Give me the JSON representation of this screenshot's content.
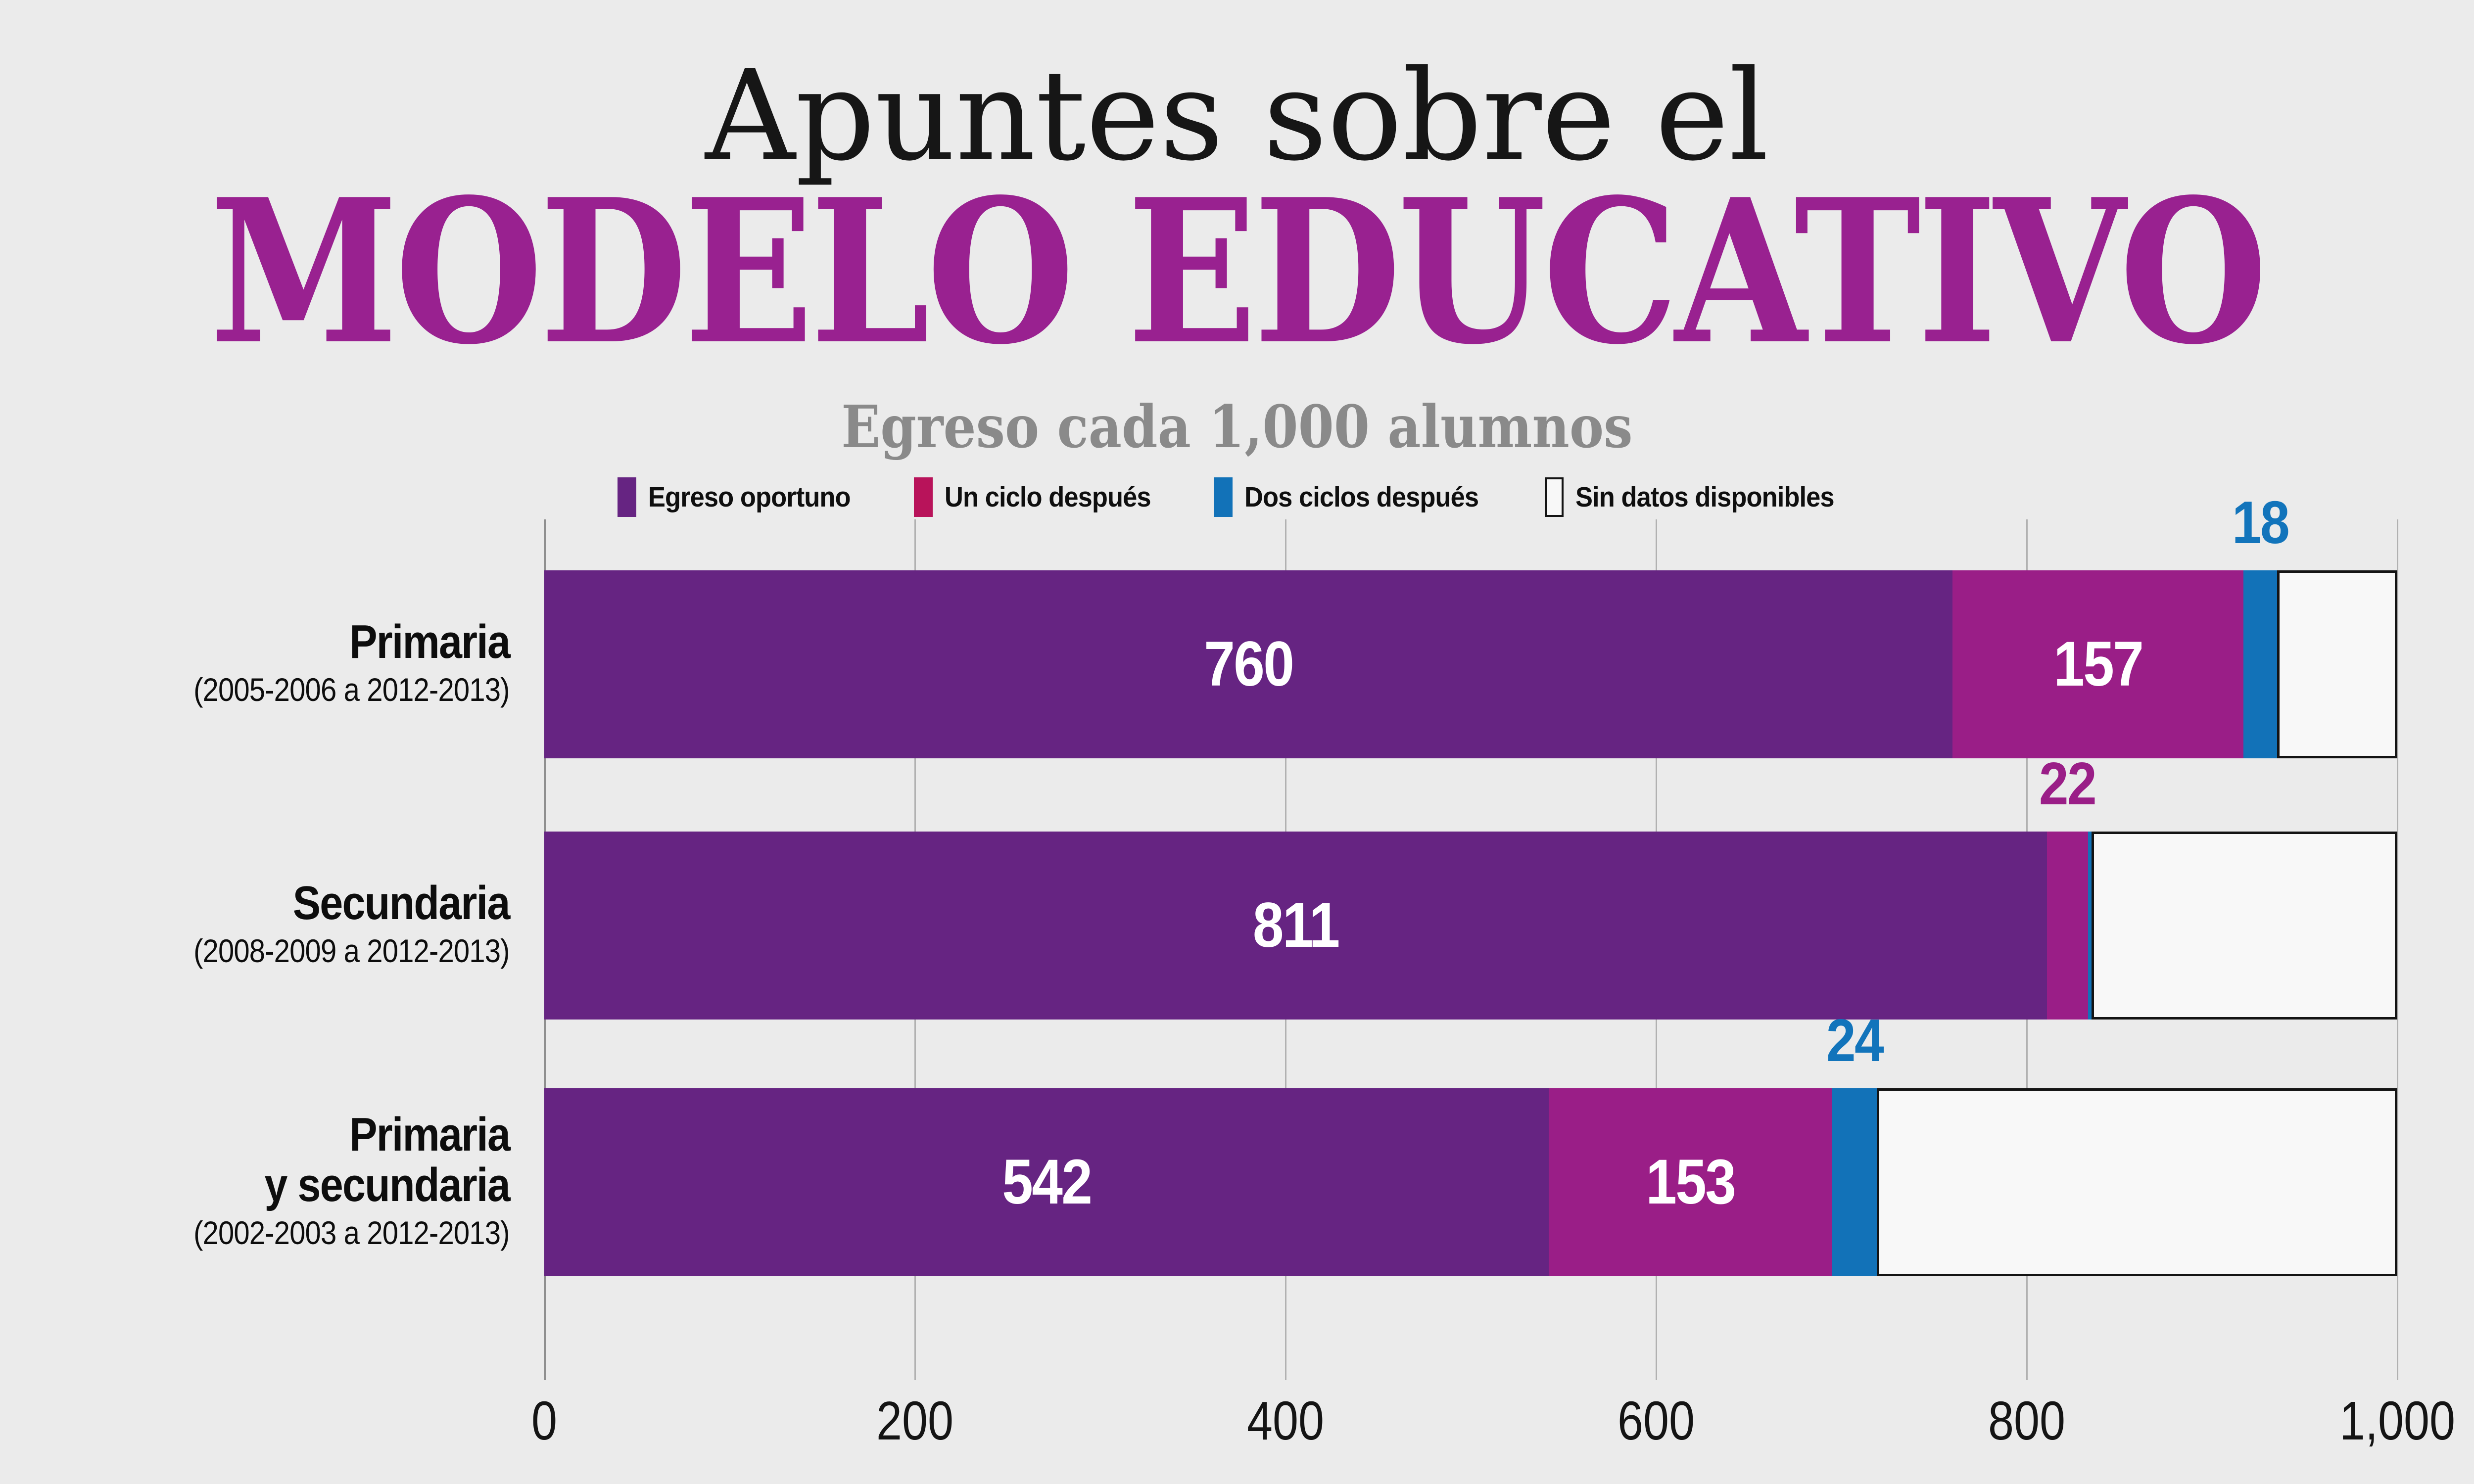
{
  "header": {
    "title_line1": "Apuntes sobre el",
    "title_line2": "MODELO EDUCATIVO",
    "subtitle": "Egreso cada 1,000 alumnos",
    "title_line1_color": "#161616",
    "title_line2_color": "#992190",
    "subtitle_color": "#8a8a8a"
  },
  "legend": {
    "position": "top",
    "items": [
      {
        "key": "egreso_oportuno",
        "label": "Egreso oportuno",
        "color": "#662482"
      },
      {
        "key": "un_ciclo",
        "label": "Un ciclo después",
        "color": "#b8135a"
      },
      {
        "key": "dos_ciclos",
        "label": "Dos ciclos después",
        "color": "#1272b8"
      },
      {
        "key": "sin_datos",
        "label": "Sin datos disponibles",
        "color": "#f8f8f8",
        "border_color": "#141414"
      }
    ]
  },
  "chart_data": {
    "type": "bar",
    "orientation": "horizontal",
    "stacked": true,
    "title": "Apuntes sobre el MODELO EDUCATIVO",
    "subtitle": "Egreso cada 1,000 alumnos",
    "xlim": [
      0,
      1000
    ],
    "grid": true,
    "grid_color": "#b1b1b1",
    "background": "#ebebeb",
    "x_ticks": [
      {
        "value": 0,
        "label": "0"
      },
      {
        "value": 200,
        "label": "200"
      },
      {
        "value": 400,
        "label": "400"
      },
      {
        "value": 600,
        "label": "600"
      },
      {
        "value": 800,
        "label": "800"
      },
      {
        "value": 1000,
        "label": "1,000"
      }
    ],
    "series_colors": {
      "egreso_oportuno": "#662482",
      "un_ciclo": "#9a1e87",
      "dos_ciclos": "#1272b8",
      "sin_datos": "#f8f8f8"
    },
    "sin_datos_border": "#141414",
    "rows": [
      {
        "key": "primaria",
        "category_lines": [
          "Primaria"
        ],
        "period": "(2005-2006 a 2012-2013)",
        "segments": [
          {
            "name": "egreso_oportuno",
            "value": 760,
            "label": "760",
            "label_position": "inside",
            "label_color": "#ffffff"
          },
          {
            "name": "un_ciclo",
            "value": 157,
            "label": "157",
            "label_position": "inside",
            "label_color": "#ffffff"
          },
          {
            "name": "dos_ciclos",
            "value": 18,
            "label": "18",
            "label_position": "above",
            "label_color": "#1274bb"
          },
          {
            "name": "sin_datos",
            "value": 65,
            "label": "",
            "label_position": "none"
          }
        ]
      },
      {
        "key": "secundaria",
        "category_lines": [
          "Secundaria"
        ],
        "period": "(2008-2009 a 2012-2013)",
        "segments": [
          {
            "name": "egreso_oportuno",
            "value": 811,
            "label": "811",
            "label_position": "inside",
            "label_color": "#ffffff"
          },
          {
            "name": "un_ciclo",
            "value": 22,
            "label": "22",
            "label_position": "above",
            "label_color": "#9a1e87"
          },
          {
            "name": "dos_ciclos",
            "value": 2,
            "label": "",
            "label_position": "none"
          },
          {
            "name": "sin_datos",
            "value": 165,
            "label": "",
            "label_position": "none"
          }
        ]
      },
      {
        "key": "primaria_y_secundaria",
        "category_lines": [
          "Primaria",
          "y secundaria"
        ],
        "period": "(2002-2003 a 2012-2013)",
        "segments": [
          {
            "name": "egreso_oportuno",
            "value": 542,
            "label": "542",
            "label_position": "inside",
            "label_color": "#ffffff"
          },
          {
            "name": "un_ciclo",
            "value": 153,
            "label": "153",
            "label_position": "inside",
            "label_color": "#ffffff"
          },
          {
            "name": "dos_ciclos",
            "value": 24,
            "label": "24",
            "label_position": "above",
            "label_color": "#1274bb"
          },
          {
            "name": "sin_datos",
            "value": 281,
            "label": "",
            "label_position": "none"
          }
        ]
      }
    ]
  }
}
